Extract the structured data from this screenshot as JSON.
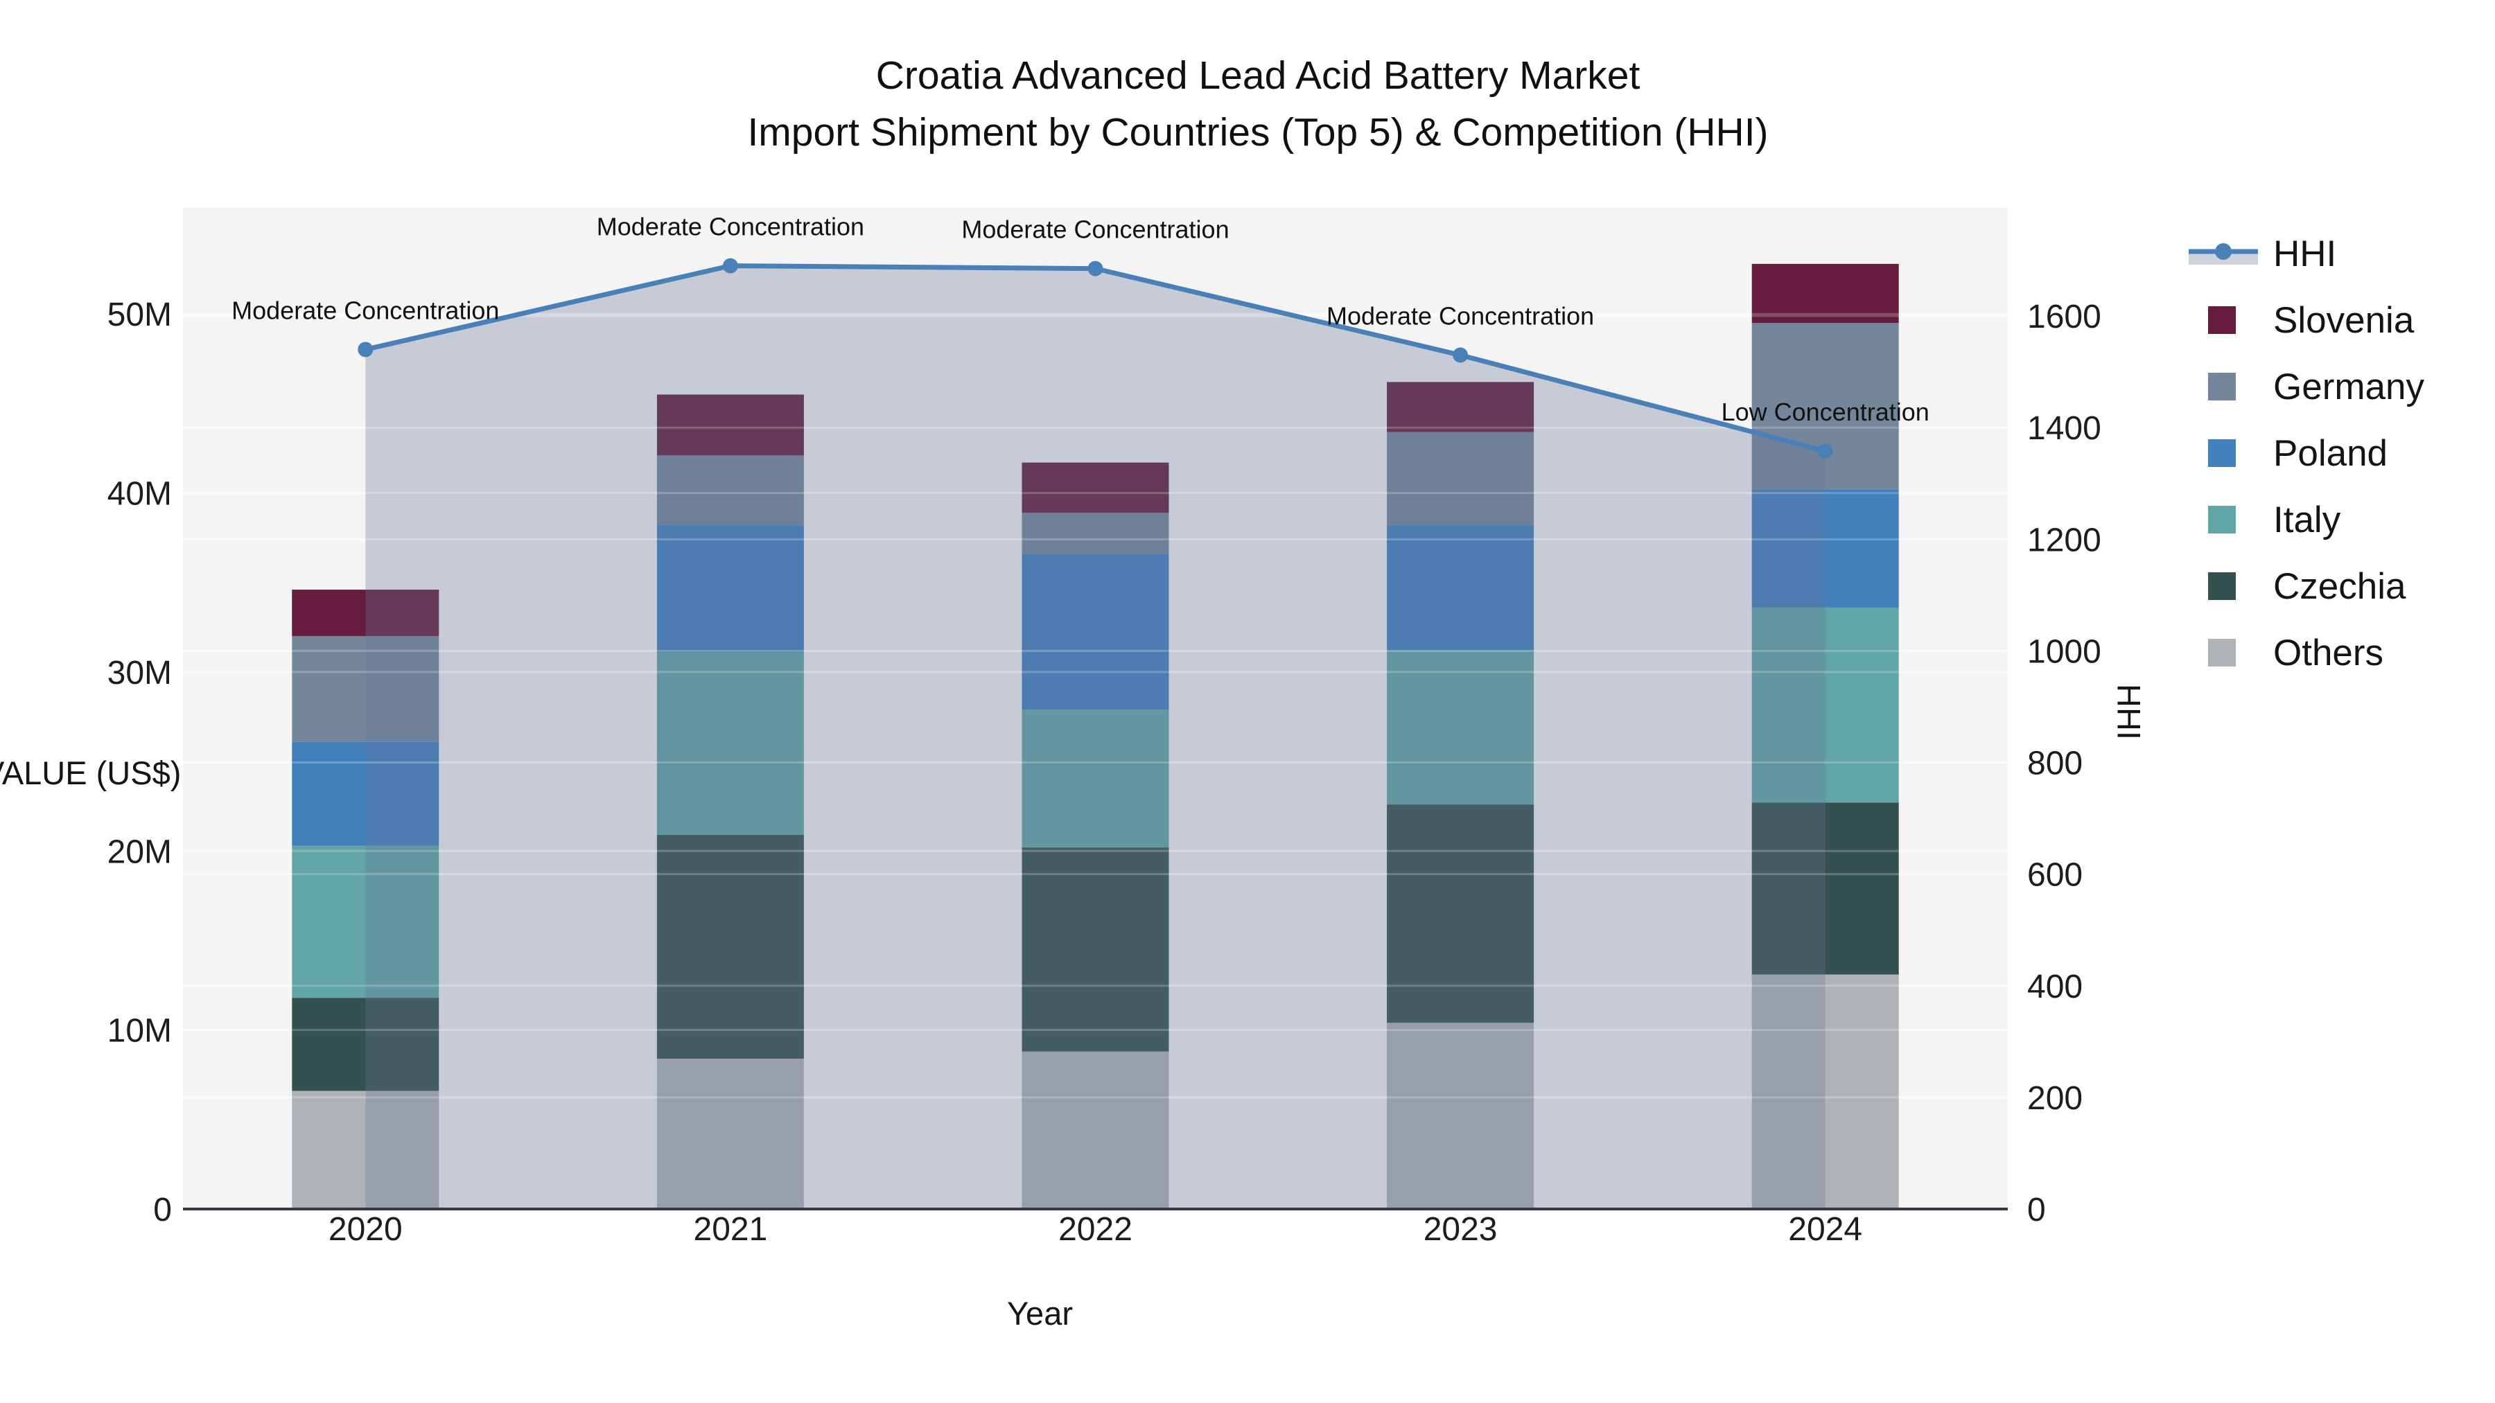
{
  "title": {
    "line1": "Croatia Advanced Lead Acid Battery Market",
    "line2": "Import Shipment by Countries (Top 5) & Competition (HHI)"
  },
  "colors": {
    "hhi_line": "#4a80b8",
    "hhi_fill": "rgba(104,118,150,0.32)",
    "plot_bg": "#f4f4f5",
    "axis_line": "#333a45",
    "slovenia": "#651c3d",
    "germany": "#74879a",
    "poland": "#4180bd",
    "italy": "#61a5a7",
    "czechia": "#34514f",
    "others": "#b0b3b6"
  },
  "legend": {
    "items": [
      {
        "label": "HHI",
        "type": "line",
        "color": "#4a80b8"
      },
      {
        "label": "Slovenia",
        "type": "square",
        "color": "#651c3d"
      },
      {
        "label": "Germany",
        "type": "square",
        "color": "#74879a"
      },
      {
        "label": "Poland",
        "type": "square",
        "color": "#4180bd"
      },
      {
        "label": "Italy",
        "type": "square",
        "color": "#61a5a7"
      },
      {
        "label": "Czechia",
        "type": "square",
        "color": "#34514f"
      },
      {
        "label": "Others",
        "type": "square",
        "color": "#b0b3b6"
      }
    ]
  },
  "chart_data": {
    "type": "bar",
    "subtype": "stacked-bars-with-line",
    "categories": [
      "2020",
      "2021",
      "2022",
      "2023",
      "2024"
    ],
    "bar_value_unit": "million US$",
    "series": [
      {
        "name": "Others",
        "color": "#b0b3b6",
        "values": [
          6.6,
          8.4,
          8.8,
          10.4,
          13.1
        ]
      },
      {
        "name": "Czechia",
        "color": "#34514f",
        "values": [
          5.2,
          12.5,
          11.4,
          12.2,
          9.6
        ]
      },
      {
        "name": "Italy",
        "color": "#61a5a7",
        "values": [
          8.5,
          10.2,
          7.7,
          8.6,
          10.9
        ]
      },
      {
        "name": "Poland",
        "color": "#4180bd",
        "values": [
          5.8,
          7.1,
          8.7,
          7.0,
          6.6
        ]
      },
      {
        "name": "Germany",
        "color": "#74879a",
        "values": [
          5.9,
          3.9,
          2.3,
          5.2,
          9.3
        ]
      },
      {
        "name": "Slovenia",
        "color": "#651c3d",
        "values": [
          2.6,
          3.4,
          2.8,
          2.8,
          3.3
        ]
      }
    ],
    "line_series": {
      "name": "HHI",
      "color": "#4a80b8",
      "fill_color": "rgba(104,118,150,0.32)",
      "values": [
        1540,
        1690,
        1685,
        1530,
        1358
      ],
      "annotations": [
        "Moderate Concentration",
        "Moderate Concentration",
        "Moderate Concentration",
        "Moderate Concentration",
        "Low Concentration"
      ]
    },
    "title": "Croatia Advanced Lead Acid Battery Market Import Shipment by Countries (Top 5) & Competition (HHI)",
    "xlabel": "Year",
    "ylabel_left": "TRADE VALUE (US$)",
    "ylabel_right": "HHI",
    "y_left_ticks": [
      "0",
      "10M",
      "20M",
      "30M",
      "40M",
      "50M"
    ],
    "y_left_tick_values": [
      0,
      10,
      20,
      30,
      40,
      50
    ],
    "y_left_max": 55.93,
    "y_right_ticks": [
      "0",
      "200",
      "400",
      "600",
      "800",
      "1000",
      "1200",
      "1400",
      "1600"
    ],
    "y_right_tick_values": [
      0,
      200,
      400,
      600,
      800,
      1000,
      1200,
      1400,
      1600
    ],
    "y_right_max": 1793.8,
    "grid": true,
    "legend_position": "right"
  },
  "layout_text": {
    "xlabel": "Year",
    "ylabel_left": "TRADE VALUE (US$)",
    "ylabel_right": "HHI"
  }
}
